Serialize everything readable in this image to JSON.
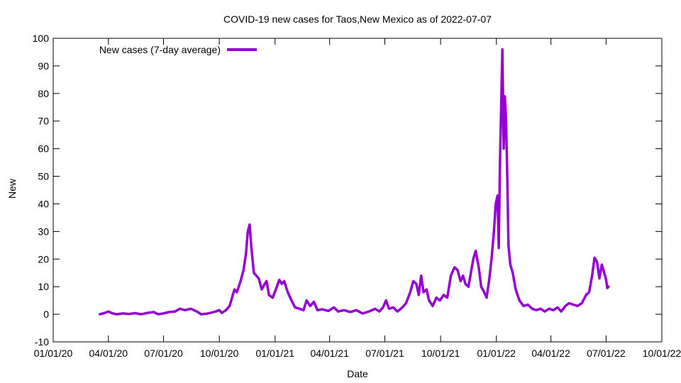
{
  "chart_data": {
    "type": "line",
    "title": "COVID-19 new cases for Taos,New Mexico as of 2022-07-07",
    "xlabel": "Date",
    "ylabel": "New",
    "ylim": [
      -10,
      100
    ],
    "yticks": [
      -10,
      0,
      10,
      20,
      30,
      40,
      50,
      60,
      70,
      80,
      90,
      100
    ],
    "xlim": [
      "2020-01-01",
      "2022-10-01"
    ],
    "xticks": [
      {
        "date": "2020-01-01",
        "label": "01/01/20"
      },
      {
        "date": "2020-04-01",
        "label": "04/01/20"
      },
      {
        "date": "2020-07-01",
        "label": "07/01/20"
      },
      {
        "date": "2020-10-01",
        "label": "10/01/20"
      },
      {
        "date": "2021-01-01",
        "label": "01/01/21"
      },
      {
        "date": "2021-04-01",
        "label": "04/01/21"
      },
      {
        "date": "2021-07-01",
        "label": "07/01/21"
      },
      {
        "date": "2021-10-01",
        "label": "10/01/21"
      },
      {
        "date": "2022-01-01",
        "label": "01/01/22"
      },
      {
        "date": "2022-04-01",
        "label": "04/01/22"
      },
      {
        "date": "2022-07-01",
        "label": "07/01/22"
      },
      {
        "date": "2022-10-01",
        "label": "10/01/22"
      }
    ],
    "grid": false,
    "legend_position": "top-left",
    "series": [
      {
        "name": "New cases (7-day average)",
        "color": "#9400d3",
        "points": [
          [
            "2020-03-18",
            0.0
          ],
          [
            "2020-03-25",
            0.4
          ],
          [
            "2020-04-01",
            1.0
          ],
          [
            "2020-04-08",
            0.3
          ],
          [
            "2020-04-15",
            0.0
          ],
          [
            "2020-04-25",
            0.3
          ],
          [
            "2020-05-05",
            0.1
          ],
          [
            "2020-05-15",
            0.4
          ],
          [
            "2020-05-25",
            0.0
          ],
          [
            "2020-06-05",
            0.5
          ],
          [
            "2020-06-15",
            0.8
          ],
          [
            "2020-06-22",
            0.0
          ],
          [
            "2020-07-01",
            0.3
          ],
          [
            "2020-07-10",
            0.8
          ],
          [
            "2020-07-20",
            1.0
          ],
          [
            "2020-07-28",
            2.0
          ],
          [
            "2020-08-05",
            1.5
          ],
          [
            "2020-08-15",
            2.0
          ],
          [
            "2020-08-25",
            1.0
          ],
          [
            "2020-09-01",
            0.0
          ],
          [
            "2020-09-10",
            0.2
          ],
          [
            "2020-09-18",
            0.6
          ],
          [
            "2020-09-25",
            1.0
          ],
          [
            "2020-10-01",
            1.5
          ],
          [
            "2020-10-05",
            0.5
          ],
          [
            "2020-10-12",
            1.5
          ],
          [
            "2020-10-18",
            3.0
          ],
          [
            "2020-10-22",
            6.0
          ],
          [
            "2020-10-26",
            9.0
          ],
          [
            "2020-10-30",
            8.0
          ],
          [
            "2020-11-05",
            12.0
          ],
          [
            "2020-11-10",
            16.0
          ],
          [
            "2020-11-14",
            22.0
          ],
          [
            "2020-11-17",
            30.0
          ],
          [
            "2020-11-20",
            32.5
          ],
          [
            "2020-11-23",
            24.0
          ],
          [
            "2020-11-27",
            15.0
          ],
          [
            "2020-12-05",
            13.0
          ],
          [
            "2020-12-10",
            9.0
          ],
          [
            "2020-12-15",
            11.0
          ],
          [
            "2020-12-18",
            12.0
          ],
          [
            "2020-12-22",
            7.0
          ],
          [
            "2020-12-28",
            6.0
          ],
          [
            "2021-01-04",
            10.0
          ],
          [
            "2021-01-08",
            12.5
          ],
          [
            "2021-01-12",
            11.0
          ],
          [
            "2021-01-16",
            12.0
          ],
          [
            "2021-01-22",
            8.0
          ],
          [
            "2021-01-28",
            5.0
          ],
          [
            "2021-02-03",
            2.5
          ],
          [
            "2021-02-10",
            2.0
          ],
          [
            "2021-02-17",
            1.5
          ],
          [
            "2021-02-22",
            5.0
          ],
          [
            "2021-02-28",
            3.0
          ],
          [
            "2021-03-06",
            4.5
          ],
          [
            "2021-03-12",
            1.5
          ],
          [
            "2021-03-20",
            1.8
          ],
          [
            "2021-03-30",
            1.2
          ],
          [
            "2021-04-08",
            2.5
          ],
          [
            "2021-04-15",
            1.0
          ],
          [
            "2021-04-25",
            1.5
          ],
          [
            "2021-05-05",
            0.8
          ],
          [
            "2021-05-15",
            1.5
          ],
          [
            "2021-05-25",
            0.3
          ],
          [
            "2021-06-05",
            1.0
          ],
          [
            "2021-06-15",
            2.0
          ],
          [
            "2021-06-22",
            1.0
          ],
          [
            "2021-06-28",
            2.5
          ],
          [
            "2021-07-03",
            5.0
          ],
          [
            "2021-07-08",
            2.0
          ],
          [
            "2021-07-15",
            2.5
          ],
          [
            "2021-07-22",
            1.0
          ],
          [
            "2021-07-30",
            2.5
          ],
          [
            "2021-08-05",
            4.0
          ],
          [
            "2021-08-12",
            8.0
          ],
          [
            "2021-08-17",
            12.0
          ],
          [
            "2021-08-22",
            11.0
          ],
          [
            "2021-08-26",
            7.0
          ],
          [
            "2021-08-30",
            14.0
          ],
          [
            "2021-09-03",
            8.0
          ],
          [
            "2021-09-08",
            9.0
          ],
          [
            "2021-09-12",
            5.0
          ],
          [
            "2021-09-18",
            3.0
          ],
          [
            "2021-09-24",
            6.0
          ],
          [
            "2021-09-30",
            5.0
          ],
          [
            "2021-10-06",
            7.0
          ],
          [
            "2021-10-12",
            6.0
          ],
          [
            "2021-10-18",
            14.0
          ],
          [
            "2021-10-24",
            17.0
          ],
          [
            "2021-10-29",
            16.0
          ],
          [
            "2021-11-03",
            12.0
          ],
          [
            "2021-11-07",
            14.0
          ],
          [
            "2021-11-11",
            11.0
          ],
          [
            "2021-11-16",
            10.0
          ],
          [
            "2021-11-20",
            15.0
          ],
          [
            "2021-11-24",
            20.0
          ],
          [
            "2021-11-28",
            23.0
          ],
          [
            "2021-12-03",
            17.0
          ],
          [
            "2021-12-07",
            10.0
          ],
          [
            "2021-12-12",
            8.0
          ],
          [
            "2021-12-16",
            6.0
          ],
          [
            "2021-12-20",
            12.0
          ],
          [
            "2021-12-24",
            20.0
          ],
          [
            "2021-12-28",
            30.0
          ],
          [
            "2021-12-31",
            40.0
          ],
          [
            "2022-01-03",
            43.0
          ],
          [
            "2022-01-05",
            24.0
          ],
          [
            "2022-01-07",
            55.0
          ],
          [
            "2022-01-09",
            75.0
          ],
          [
            "2022-01-11",
            96.0
          ],
          [
            "2022-01-13",
            60.0
          ],
          [
            "2022-01-15",
            79.0
          ],
          [
            "2022-01-17",
            70.0
          ],
          [
            "2022-01-19",
            50.0
          ],
          [
            "2022-01-21",
            25.0
          ],
          [
            "2022-01-24",
            18.0
          ],
          [
            "2022-01-28",
            15.0
          ],
          [
            "2022-02-02",
            9.0
          ],
          [
            "2022-02-08",
            5.0
          ],
          [
            "2022-02-15",
            3.0
          ],
          [
            "2022-02-22",
            3.5
          ],
          [
            "2022-03-01",
            2.0
          ],
          [
            "2022-03-08",
            1.5
          ],
          [
            "2022-03-15",
            2.0
          ],
          [
            "2022-03-22",
            1.0
          ],
          [
            "2022-03-29",
            2.0
          ],
          [
            "2022-04-05",
            1.5
          ],
          [
            "2022-04-12",
            2.5
          ],
          [
            "2022-04-18",
            1.0
          ],
          [
            "2022-04-25",
            3.0
          ],
          [
            "2022-05-01",
            4.0
          ],
          [
            "2022-05-08",
            3.5
          ],
          [
            "2022-05-15",
            3.0
          ],
          [
            "2022-05-22",
            4.0
          ],
          [
            "2022-05-29",
            7.0
          ],
          [
            "2022-06-03",
            8.0
          ],
          [
            "2022-06-08",
            14.0
          ],
          [
            "2022-06-12",
            20.5
          ],
          [
            "2022-06-16",
            19.0
          ],
          [
            "2022-06-20",
            13.0
          ],
          [
            "2022-06-24",
            18.0
          ],
          [
            "2022-06-28",
            15.0
          ],
          [
            "2022-07-01",
            12.5
          ],
          [
            "2022-07-03",
            9.5
          ],
          [
            "2022-07-05",
            10.0
          ]
        ]
      }
    ]
  }
}
